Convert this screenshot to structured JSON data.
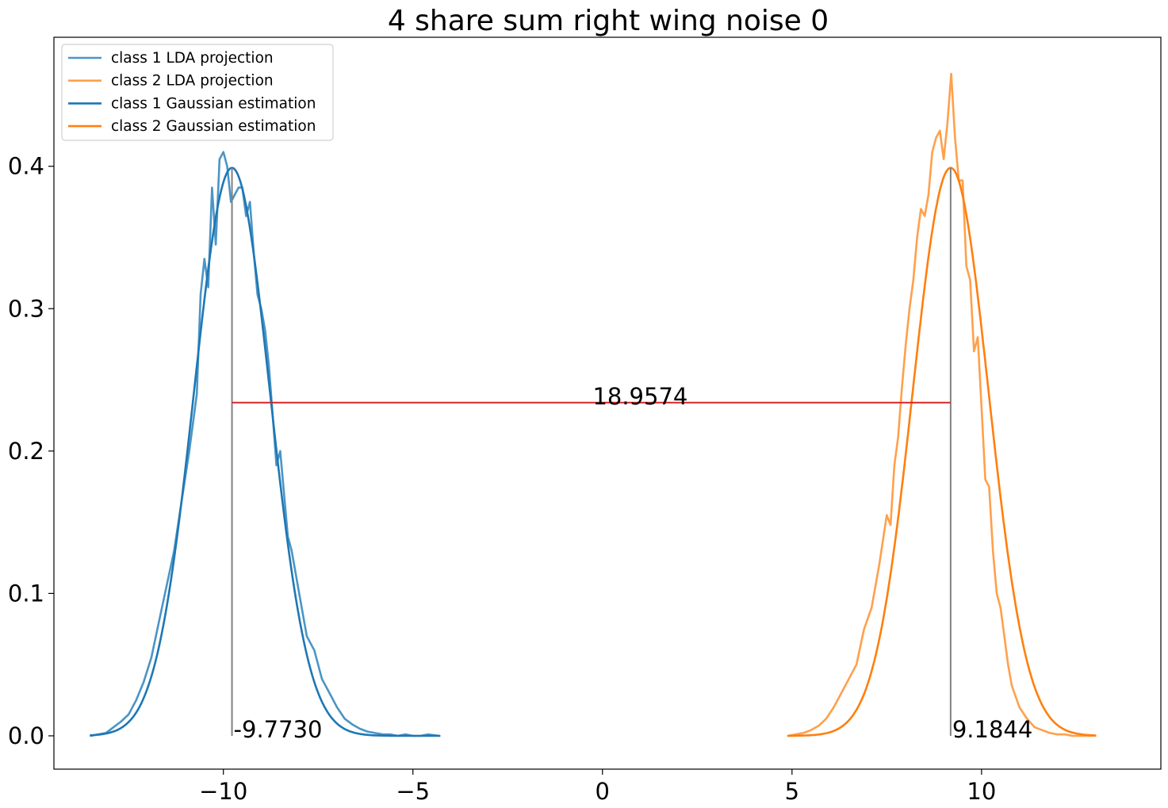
{
  "chart_data": {
    "type": "line",
    "title": "4 share sum right wing noise 0",
    "xlabel": "",
    "ylabel": "",
    "xlim": [
      -14.47,
      14.73
    ],
    "ylim": [
      -0.0234,
      0.4906
    ],
    "x_ticks": [
      -10,
      -5,
      0,
      5,
      10
    ],
    "x_tick_labels": [
      "−10",
      "−5",
      "0",
      "5",
      "10"
    ],
    "y_ticks": [
      0.0,
      0.1,
      0.2,
      0.3,
      0.4
    ],
    "y_tick_labels": [
      "0.0",
      "0.1",
      "0.2",
      "0.3",
      "0.4"
    ],
    "grid": false,
    "legend_position": "upper-left",
    "series": [
      {
        "name": "class 1 LDA projection",
        "color": "#4b95c6",
        "kind": "histogram-line",
        "x": [
          -13.5,
          -13.3,
          -13.1,
          -12.9,
          -12.7,
          -12.5,
          -12.3,
          -12.1,
          -11.9,
          -11.7,
          -11.5,
          -11.3,
          -11.1,
          -10.9,
          -10.7,
          -10.6,
          -10.5,
          -10.4,
          -10.3,
          -10.2,
          -10.1,
          -10.0,
          -9.9,
          -9.8,
          -9.7,
          -9.6,
          -9.5,
          -9.4,
          -9.3,
          -9.2,
          -9.1,
          -9.0,
          -8.9,
          -8.8,
          -8.7,
          -8.6,
          -8.5,
          -8.4,
          -8.3,
          -8.2,
          -8.0,
          -7.8,
          -7.6,
          -7.4,
          -7.2,
          -7.0,
          -6.8,
          -6.6,
          -6.4,
          -6.2,
          -6.0,
          -5.8,
          -5.6,
          -5.4,
          -5.2,
          -5.0,
          -4.8,
          -4.6,
          -4.3
        ],
        "y": [
          0.0,
          0.001,
          0.002,
          0.006,
          0.01,
          0.015,
          0.025,
          0.038,
          0.055,
          0.08,
          0.105,
          0.13,
          0.165,
          0.2,
          0.24,
          0.31,
          0.335,
          0.315,
          0.385,
          0.345,
          0.405,
          0.41,
          0.4,
          0.375,
          0.38,
          0.385,
          0.385,
          0.365,
          0.375,
          0.34,
          0.31,
          0.3,
          0.285,
          0.26,
          0.225,
          0.19,
          0.2,
          0.17,
          0.14,
          0.13,
          0.1,
          0.07,
          0.06,
          0.04,
          0.03,
          0.02,
          0.012,
          0.008,
          0.005,
          0.003,
          0.002,
          0.001,
          0.001,
          0.0,
          0.001,
          0.0,
          0.0,
          0.001,
          0.0
        ]
      },
      {
        "name": "class 2 LDA projection",
        "color": "#ffa04c",
        "kind": "histogram-line",
        "x": [
          4.9,
          5.1,
          5.3,
          5.5,
          5.7,
          5.9,
          6.1,
          6.3,
          6.5,
          6.7,
          6.9,
          7.1,
          7.3,
          7.5,
          7.6,
          7.7,
          7.8,
          7.9,
          8.0,
          8.1,
          8.2,
          8.3,
          8.4,
          8.5,
          8.6,
          8.7,
          8.8,
          8.9,
          9.0,
          9.1,
          9.2,
          9.3,
          9.4,
          9.5,
          9.6,
          9.7,
          9.8,
          9.9,
          10.0,
          10.1,
          10.2,
          10.3,
          10.4,
          10.5,
          10.6,
          10.7,
          10.8,
          11.0,
          11.2,
          11.4,
          11.6,
          11.8,
          12.0,
          12.2,
          12.4,
          12.6,
          12.8,
          13.0
        ],
        "y": [
          0.0,
          0.001,
          0.002,
          0.004,
          0.007,
          0.012,
          0.02,
          0.03,
          0.04,
          0.05,
          0.075,
          0.09,
          0.12,
          0.155,
          0.148,
          0.19,
          0.21,
          0.245,
          0.275,
          0.3,
          0.32,
          0.35,
          0.37,
          0.365,
          0.38,
          0.41,
          0.42,
          0.425,
          0.405,
          0.43,
          0.465,
          0.42,
          0.39,
          0.39,
          0.33,
          0.32,
          0.27,
          0.28,
          0.23,
          0.18,
          0.175,
          0.13,
          0.1,
          0.09,
          0.07,
          0.05,
          0.035,
          0.02,
          0.012,
          0.006,
          0.004,
          0.002,
          0.001,
          0.001,
          0.0,
          0.0,
          0.0,
          0.0
        ]
      },
      {
        "name": "class 1 Gaussian estimation",
        "color": "#1f77b4",
        "kind": "gaussian",
        "mean": -9.773,
        "std": 1.0,
        "x_range": [
          -13.5,
          -4.3
        ]
      },
      {
        "name": "class 2 Gaussian estimation",
        "color": "#ff7f0e",
        "kind": "gaussian",
        "mean": 9.1844,
        "std": 1.0,
        "x_range": [
          4.9,
          13.0
        ]
      }
    ],
    "annotations": [
      {
        "type": "vline",
        "x": -9.773,
        "y0": 0.0,
        "y1": 0.399,
        "color": "#808080"
      },
      {
        "type": "vline",
        "x": 9.1844,
        "y0": 0.0,
        "y1": 0.399,
        "color": "#808080"
      },
      {
        "type": "hline",
        "y": 0.234,
        "x0": -9.773,
        "x1": 9.1844,
        "color": "#d62728"
      },
      {
        "type": "text",
        "x": -9.773,
        "y": 0.0,
        "text": "-9.7730"
      },
      {
        "type": "text",
        "x": 9.1844,
        "y": 0.0,
        "text": "9.1844"
      },
      {
        "type": "text",
        "x": -0.3,
        "y": 0.234,
        "text": "18.9574"
      }
    ]
  }
}
